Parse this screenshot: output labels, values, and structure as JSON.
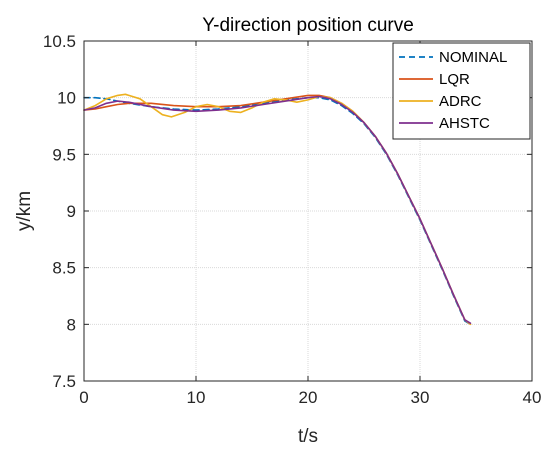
{
  "chart_data": {
    "type": "line",
    "title": "Y-direction position curve",
    "xlabel": "t/s",
    "ylabel": "y/km",
    "xlim": [
      0,
      40
    ],
    "ylim": [
      7.5,
      10.5
    ],
    "xticks": [
      0,
      10,
      20,
      30,
      40
    ],
    "yticks": [
      7.5,
      8,
      8.5,
      9,
      9.5,
      10,
      10.5
    ],
    "xtick_labels": [
      "0",
      "10",
      "20",
      "30",
      "40"
    ],
    "ytick_labels": [
      "7.5",
      "8",
      "8.5",
      "9",
      "9.5",
      "10",
      "10.5"
    ],
    "grid": true,
    "legend_position": "top-right",
    "series": [
      {
        "name": "NOMINAL",
        "color": "#0072BD",
        "dash": "dashed",
        "x": [
          0,
          1,
          2,
          3,
          4,
          6,
          8,
          10,
          12,
          14,
          16,
          18,
          20,
          21,
          22,
          23,
          24,
          25,
          26,
          27,
          28,
          29,
          30,
          31,
          32,
          33,
          34,
          34.5
        ],
        "y": [
          10.0,
          10.0,
          9.99,
          9.97,
          9.95,
          9.92,
          9.9,
          9.89,
          9.9,
          9.92,
          9.95,
          9.98,
          10.0,
          10.0,
          9.98,
          9.93,
          9.86,
          9.77,
          9.65,
          9.5,
          9.32,
          9.12,
          8.92,
          8.7,
          8.48,
          8.25,
          8.03,
          8.0
        ]
      },
      {
        "name": "LQR",
        "color": "#D95319",
        "dash": "solid",
        "x": [
          0,
          1,
          2,
          3,
          4,
          6,
          8,
          10,
          12,
          14,
          16,
          18,
          20,
          21,
          22,
          23,
          24,
          25,
          26,
          27,
          28,
          29,
          30,
          31,
          32,
          33,
          34,
          34.5
        ],
        "y": [
          9.89,
          9.9,
          9.92,
          9.94,
          9.95,
          9.95,
          9.93,
          9.92,
          9.92,
          9.93,
          9.96,
          9.99,
          10.02,
          10.02,
          10.0,
          9.95,
          9.88,
          9.78,
          9.66,
          9.51,
          9.33,
          9.13,
          8.93,
          8.71,
          8.49,
          8.26,
          8.04,
          8.0
        ]
      },
      {
        "name": "ADRC",
        "color": "#EDB120",
        "dash": "solid",
        "x": [
          0,
          1,
          2,
          3,
          3.7,
          5,
          6,
          7,
          7.8,
          9,
          10,
          11,
          12,
          13,
          14,
          15,
          16,
          17,
          18,
          19,
          20,
          21,
          22,
          23,
          24,
          25,
          26,
          27,
          28,
          29,
          30,
          31,
          32,
          33,
          34,
          34.5
        ],
        "y": [
          9.89,
          9.93,
          9.99,
          10.02,
          10.03,
          9.99,
          9.92,
          9.85,
          9.83,
          9.87,
          9.92,
          9.94,
          9.92,
          9.88,
          9.87,
          9.91,
          9.96,
          9.99,
          9.98,
          9.96,
          9.98,
          10.01,
          10.0,
          9.95,
          9.88,
          9.78,
          9.66,
          9.51,
          9.33,
          9.13,
          8.93,
          8.71,
          8.49,
          8.26,
          8.04,
          8.0
        ]
      },
      {
        "name": "AHSTC",
        "color": "#7E2F8E",
        "dash": "solid",
        "x": [
          0,
          1,
          2,
          3,
          4,
          6,
          8,
          10,
          12,
          14,
          16,
          18,
          20,
          21,
          22,
          23,
          24,
          25,
          26,
          27,
          28,
          29,
          30,
          31,
          32,
          33,
          34,
          34.5
        ],
        "y": [
          9.89,
          9.91,
          9.95,
          9.97,
          9.96,
          9.92,
          9.89,
          9.88,
          9.89,
          9.91,
          9.94,
          9.97,
          10.0,
          10.01,
          9.99,
          9.94,
          9.87,
          9.78,
          9.66,
          9.51,
          9.33,
          9.13,
          8.93,
          8.71,
          8.49,
          8.26,
          8.04,
          8.01
        ]
      }
    ]
  }
}
